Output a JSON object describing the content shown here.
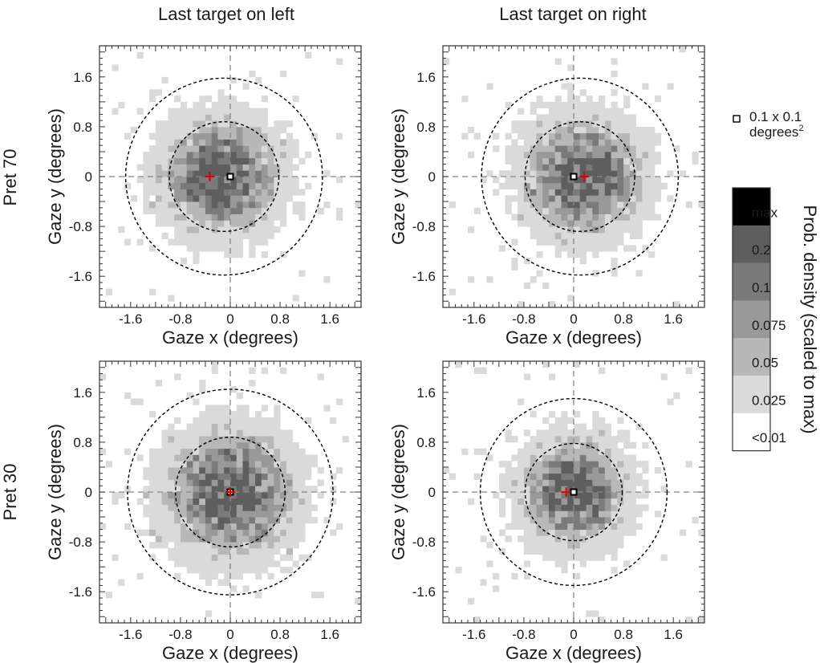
{
  "figure": {
    "column_titles": [
      "Last target on left",
      "Last target on right"
    ],
    "row_labels": [
      "Pret 70",
      "Pret 30"
    ]
  },
  "chart_data": [
    {
      "type": "heatmap",
      "row": "Pret 70",
      "column": "Last target on left",
      "xlabel": "Gaze x (degrees)",
      "ylabel": "Gaze y (degrees)",
      "xlim": [
        -2.1,
        2.1
      ],
      "ylim": [
        -2.1,
        2.1
      ],
      "xticks": [
        -1.6,
        -0.8,
        0,
        0.8,
        1.6
      ],
      "yticks": [
        -1.6,
        -0.8,
        0,
        0.8,
        1.6
      ],
      "xtick_labels": [
        "-1.6",
        "-0.8",
        "0",
        "0.8",
        "1.6"
      ],
      "ytick_labels": [
        "-1.6",
        "-0.8",
        "0",
        "0.8",
        "1.6"
      ],
      "bin_size": 0.1,
      "distribution_center": [
        -0.15,
        0.0
      ],
      "distribution_spread": 0.55,
      "inner_circle": {
        "center": [
          -0.1,
          0.0
        ],
        "radius": 0.88
      },
      "outer_circle": {
        "center": [
          -0.1,
          0.0
        ],
        "radius": 1.58
      },
      "mean_marker": [
        -0.33,
        0.0
      ],
      "target_marker": [
        0.0,
        0.0
      ],
      "seed": 11
    },
    {
      "type": "heatmap",
      "row": "Pret 70",
      "column": "Last target on right",
      "xlabel": "Gaze x (degrees)",
      "ylabel": "Gaze y (degrees)",
      "xlim": [
        -2.1,
        2.1
      ],
      "ylim": [
        -2.1,
        2.1
      ],
      "xticks": [
        -1.6,
        -0.8,
        0,
        0.8,
        1.6
      ],
      "yticks": [
        -1.6,
        -0.8,
        0,
        0.8,
        1.6
      ],
      "xtick_labels": [
        "-1.6",
        "-0.8",
        "0",
        "0.8",
        "1.6"
      ],
      "ytick_labels": [
        "-1.6",
        "-0.8",
        "0",
        "0.8",
        "1.6"
      ],
      "bin_size": 0.1,
      "distribution_center": [
        0.15,
        0.0
      ],
      "distribution_spread": 0.55,
      "inner_circle": {
        "center": [
          0.1,
          0.0
        ],
        "radius": 0.88
      },
      "outer_circle": {
        "center": [
          0.1,
          0.0
        ],
        "radius": 1.58
      },
      "mean_marker": [
        0.17,
        0.0
      ],
      "target_marker": [
        0.0,
        0.0
      ],
      "seed": 23
    },
    {
      "type": "heatmap",
      "row": "Pret 30",
      "column": "Last target on left",
      "xlabel": "Gaze x (degrees)",
      "ylabel": "Gaze y (degrees)",
      "xlim": [
        -2.1,
        2.1
      ],
      "ylim": [
        -2.1,
        2.1
      ],
      "xticks": [
        -1.6,
        -0.8,
        0,
        0.8,
        1.6
      ],
      "yticks": [
        -1.6,
        -0.8,
        0,
        0.8,
        1.6
      ],
      "xtick_labels": [
        "-1.6",
        "-0.8",
        "0",
        "0.8",
        "1.6"
      ],
      "ytick_labels": [
        "-1.6",
        "-0.8",
        "0",
        "0.8",
        "1.6"
      ],
      "bin_size": 0.1,
      "distribution_center": [
        0.0,
        0.0
      ],
      "distribution_spread": 0.6,
      "inner_circle": {
        "center": [
          0.0,
          0.0
        ],
        "radius": 0.88
      },
      "outer_circle": {
        "center": [
          0.0,
          0.0
        ],
        "radius": 1.65
      },
      "mean_marker": [
        0.0,
        0.0
      ],
      "target_marker": [
        0.0,
        0.0
      ],
      "seed": 37
    },
    {
      "type": "heatmap",
      "row": "Pret 30",
      "column": "Last target on right",
      "xlabel": "Gaze x (degrees)",
      "ylabel": "Gaze y (degrees)",
      "xlim": [
        -2.1,
        2.1
      ],
      "ylim": [
        -2.1,
        2.1
      ],
      "xticks": [
        -1.6,
        -0.8,
        0,
        0.8,
        1.6
      ],
      "yticks": [
        -1.6,
        -0.8,
        0,
        0.8,
        1.6
      ],
      "xtick_labels": [
        "-1.6",
        "-0.8",
        "0",
        "0.8",
        "1.6"
      ],
      "ytick_labels": [
        "-1.6",
        "-0.8",
        "0",
        "0.8",
        "1.6"
      ],
      "bin_size": 0.1,
      "distribution_center": [
        0.0,
        0.0
      ],
      "distribution_spread": 0.5,
      "inner_circle": {
        "center": [
          0.0,
          0.0
        ],
        "radius": 0.78
      },
      "outer_circle": {
        "center": [
          0.0,
          0.0
        ],
        "radius": 1.5
      },
      "mean_marker": [
        -0.12,
        0.0
      ],
      "target_marker": [
        0.0,
        0.0
      ],
      "seed": 53
    }
  ],
  "colorbar": {
    "title": "Prob. density (scaled to max)",
    "levels": [
      {
        "label": "max",
        "color": "#000000"
      },
      {
        "label": "0.2",
        "color": "#5e5e5e"
      },
      {
        "label": "0.1",
        "color": "#7a7a7a"
      },
      {
        "label": "0.075",
        "color": "#999999"
      },
      {
        "label": "0.05",
        "color": "#b8b8b8"
      },
      {
        "label": "0.025",
        "color": "#dadada"
      },
      {
        "label": "<0.01",
        "color": "#ffffff"
      }
    ]
  },
  "bin_legend": {
    "line1": "0.1 x 0.1",
    "line2": "degrees",
    "superscript": "2"
  },
  "colors": {
    "mean_marker": "#e00000",
    "target_marker": "#000000",
    "reference_lines": "#888888",
    "circles": "#000000"
  }
}
